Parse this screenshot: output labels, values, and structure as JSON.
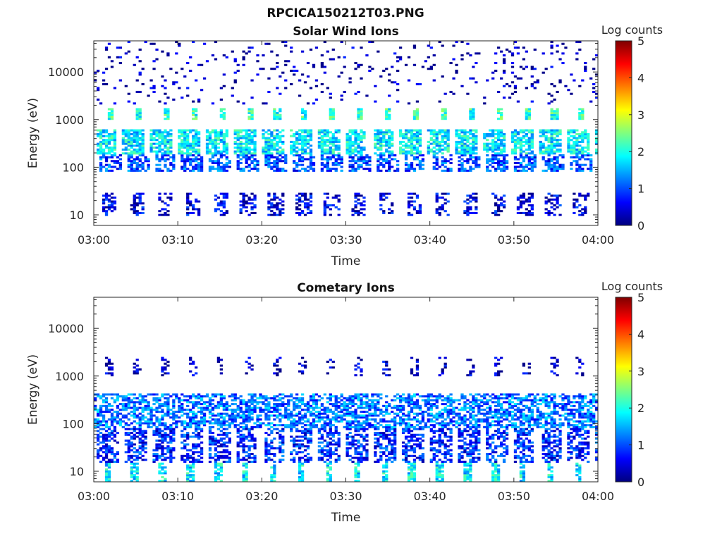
{
  "figure_title": "RPCICA150212T03.PNG",
  "colorbar_scale": {
    "label": "Log counts",
    "min": 0,
    "max": 5,
    "ticks": [
      "0",
      "1",
      "2",
      "3",
      "4",
      "5"
    ],
    "colormap": [
      "#00007f",
      "#0000ff",
      "#007fff",
      "#00ffff",
      "#7fff7f",
      "#ffff00",
      "#ff7f00",
      "#ff0000",
      "#7f0000"
    ]
  },
  "chart_data": [
    {
      "type": "heatmap",
      "title": "Solar Wind Ions",
      "xlabel": "Time",
      "ylabel": "Energy (eV)",
      "xlim": [
        "03:00",
        "04:00"
      ],
      "x_ticks": [
        "03:00",
        "03:10",
        "03:20",
        "03:30",
        "03:40",
        "03:50",
        "04:00"
      ],
      "y_scale": "log",
      "ylim": [
        6,
        45000
      ],
      "y_ticks": [
        {
          "value": 10,
          "label": "10"
        },
        {
          "value": 100,
          "label": "100"
        },
        {
          "value": 1000,
          "label": "1000"
        },
        {
          "value": 10000,
          "label": "10000"
        }
      ],
      "colorbar_label": "Log counts",
      "period_minutes": 3.3,
      "bands": [
        {
          "emin": 10,
          "emax": 30,
          "tmin": 1.0,
          "tmax": 2.8,
          "level": 0.5,
          "density": 0.45
        },
        {
          "emin": 80,
          "emax": 180,
          "tmin": 0.6,
          "tmax": 3.2,
          "level": 1.0,
          "density": 0.6
        },
        {
          "emin": 180,
          "emax": 600,
          "tmin": 0.2,
          "tmax": 2.8,
          "level": 1.8,
          "density": 0.75
        },
        {
          "emin": 1000,
          "emax": 1800,
          "tmin": 1.7,
          "tmax": 2.4,
          "level": 2.1,
          "density": 0.9
        },
        {
          "emin": 2000,
          "emax": 45000,
          "tmin": 0.0,
          "tmax": 3.3,
          "level": 0.2,
          "density": 0.07
        }
      ]
    },
    {
      "type": "heatmap",
      "title": "Cometary Ions",
      "xlabel": "Time",
      "ylabel": "Energy (eV)",
      "xlim": [
        "03:00",
        "04:00"
      ],
      "x_ticks": [
        "03:00",
        "03:10",
        "03:20",
        "03:30",
        "03:40",
        "03:50",
        "04:00"
      ],
      "y_scale": "log",
      "ylim": [
        6,
        45000
      ],
      "y_ticks": [
        {
          "value": 10,
          "label": "10"
        },
        {
          "value": 100,
          "label": "100"
        },
        {
          "value": 1000,
          "label": "1000"
        },
        {
          "value": 10000,
          "label": "10000"
        }
      ],
      "colorbar_label": "Log counts",
      "period_minutes": 3.3,
      "bands": [
        {
          "emin": 6,
          "emax": 15,
          "tmin": 1.2,
          "tmax": 2.0,
          "level": 1.8,
          "density": 0.8
        },
        {
          "emin": 15,
          "emax": 80,
          "tmin": 0.4,
          "tmax": 3.0,
          "level": 0.8,
          "density": 0.55
        },
        {
          "emin": 80,
          "emax": 450,
          "tmin": 0.0,
          "tmax": 3.3,
          "level": 1.2,
          "density": 0.6
        },
        {
          "emin": 1000,
          "emax": 2500,
          "tmin": 1.4,
          "tmax": 2.4,
          "level": 0.3,
          "density": 0.35
        }
      ]
    }
  ]
}
